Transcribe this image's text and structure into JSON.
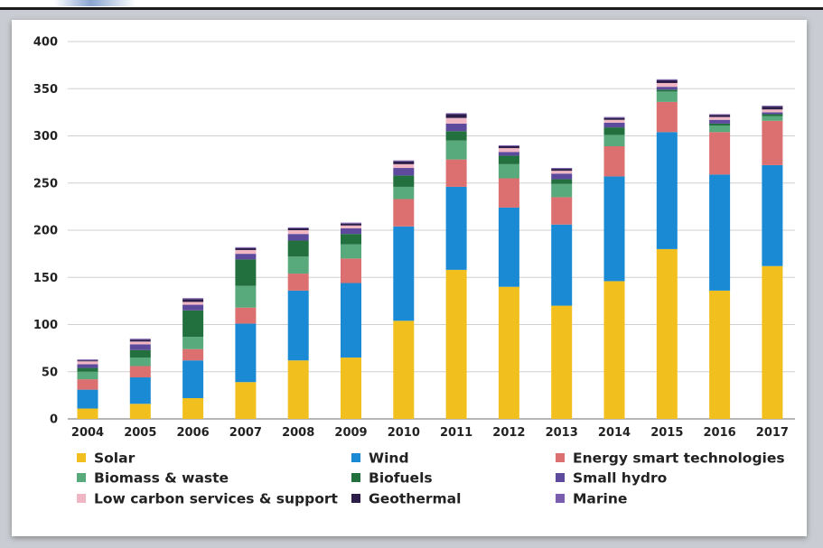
{
  "chart_data": {
    "type": "bar",
    "stacked": true,
    "title": "",
    "xlabel": "",
    "ylabel": "",
    "ylim": [
      0,
      400
    ],
    "yticks": [
      0,
      50,
      100,
      150,
      200,
      250,
      300,
      350,
      400
    ],
    "grid": true,
    "legend_position": "bottom",
    "categories": [
      "2004",
      "2005",
      "2006",
      "2007",
      "2008",
      "2009",
      "2010",
      "2011",
      "2012",
      "2013",
      "2014",
      "2015",
      "2016",
      "2017"
    ],
    "series": [
      {
        "name": "Solar",
        "color": "#f2c01e",
        "values": [
          11,
          16,
          22,
          39,
          62,
          65,
          104,
          158,
          140,
          120,
          146,
          180,
          136,
          162
        ]
      },
      {
        "name": "Wind",
        "color": "#1a8ad4",
        "values": [
          20,
          28,
          40,
          62,
          74,
          79,
          100,
          88,
          84,
          86,
          111,
          124,
          123,
          107
        ]
      },
      {
        "name": "Energy smart technologies",
        "color": "#dc7070",
        "values": [
          11,
          12,
          12,
          17,
          18,
          26,
          29,
          29,
          31,
          29,
          32,
          32,
          45,
          47
        ]
      },
      {
        "name": "Biomass & waste",
        "color": "#58a97c",
        "values": [
          8,
          9,
          13,
          23,
          18,
          15,
          13,
          20,
          15,
          14,
          12,
          11,
          7,
          5
        ]
      },
      {
        "name": "Biofuels",
        "color": "#23703f",
        "values": [
          4,
          8,
          28,
          28,
          17,
          11,
          12,
          10,
          9,
          5,
          8,
          2,
          2,
          2
        ]
      },
      {
        "name": "Small hydro",
        "color": "#5d4a9c",
        "values": [
          4,
          6,
          6,
          6,
          7,
          6,
          8,
          8,
          4,
          6,
          5,
          3,
          4,
          2
        ]
      },
      {
        "name": "Low carbon services & support",
        "color": "#f0b6c3",
        "values": [
          3,
          3,
          3,
          4,
          4,
          3,
          4,
          6,
          4,
          3,
          3,
          4,
          3,
          3
        ]
      },
      {
        "name": "Geothermal",
        "color": "#2c1e48",
        "values": [
          1,
          2,
          3,
          2,
          2,
          2,
          3,
          4,
          2,
          2,
          2,
          3,
          2,
          3
        ]
      },
      {
        "name": "Marine",
        "color": "#7a5dad",
        "values": [
          1,
          1,
          1,
          1,
          1,
          1,
          1,
          1,
          1,
          1,
          1,
          1,
          1,
          1
        ]
      }
    ]
  }
}
